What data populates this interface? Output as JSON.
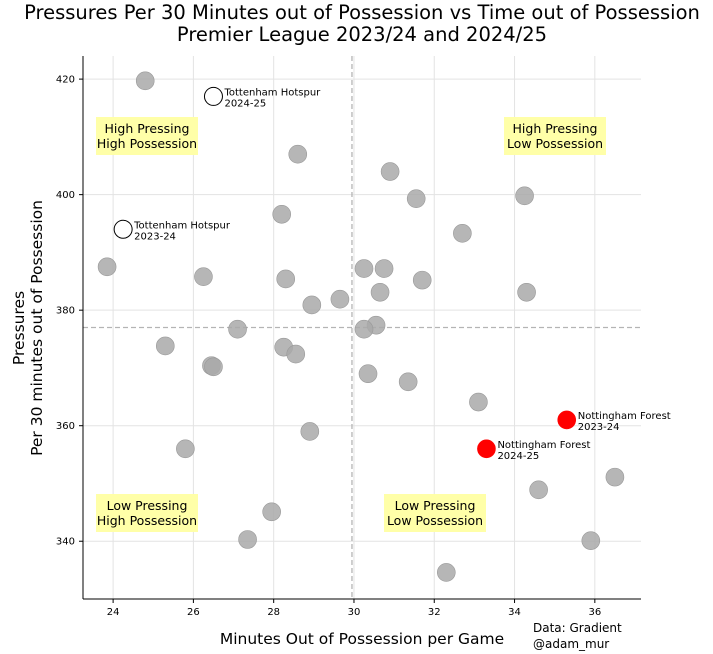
{
  "chart_data": {
    "type": "scatter",
    "title_line1": "Pressures Per 30 Minutes out of Possession vs Time out of Possession",
    "title_line2": "Premier League 2023/24 and 2024/25",
    "xlabel": "Minutes Out of Possession per Game",
    "ylabel_line1": "Pressures",
    "ylabel_line2": "Per 30 minutes out of Possession",
    "xlim": [
      23.25,
      37.15
    ],
    "ylim": [
      330,
      424
    ],
    "x_ticks": [
      "24",
      "26",
      "28",
      "30",
      "32",
      "34",
      "36"
    ],
    "y_ticks": [
      "340",
      "360",
      "380",
      "400",
      "420"
    ],
    "x_tick_values": [
      24,
      26,
      28,
      30,
      32,
      34,
      36
    ],
    "y_tick_values": [
      340,
      360,
      380,
      400,
      420
    ],
    "grid": true,
    "x_mean": 29.95,
    "y_mean": 377,
    "source_line1": "Data: Gradient",
    "source_line2": "@adam_mur",
    "quadrants": {
      "top_left": [
        "High Pressing",
        "High Possession"
      ],
      "top_right": [
        "High Pressing",
        "Low Possession"
      ],
      "bottom_left": [
        "Low Pressing",
        "High Possession"
      ],
      "bottom_right": [
        "Low Pressing",
        "Low Possession"
      ]
    },
    "colors": {
      "other": "#a9a9a9",
      "forest": "#ff0000",
      "spurs": "#ffffff",
      "quadrant_box": "#ffffa8",
      "mean_line": "#b4b4b4",
      "grid": "#e3e3e3"
    },
    "highlighted": [
      {
        "team": "Tottenham Hotspur",
        "season": "2024-25",
        "x": 26.5,
        "y": 417,
        "style": "spurs"
      },
      {
        "team": "Tottenham Hotspur",
        "season": "2023-24",
        "x": 24.25,
        "y": 394,
        "style": "spurs"
      },
      {
        "team": "Nottingham Forest",
        "season": "2023-24",
        "x": 35.3,
        "y": 361,
        "style": "forest"
      },
      {
        "team": "Nottingham Forest",
        "season": "2024-25",
        "x": 33.3,
        "y": 356,
        "style": "forest"
      }
    ],
    "other_points": [
      {
        "x": 24.8,
        "y": 419.7
      },
      {
        "x": 28.6,
        "y": 407
      },
      {
        "x": 30.9,
        "y": 404
      },
      {
        "x": 31.55,
        "y": 399.3
      },
      {
        "x": 34.25,
        "y": 399.8
      },
      {
        "x": 28.2,
        "y": 396.6
      },
      {
        "x": 32.7,
        "y": 393.3
      },
      {
        "x": 23.85,
        "y": 387.5
      },
      {
        "x": 26.25,
        "y": 385.8
      },
      {
        "x": 28.3,
        "y": 385.4
      },
      {
        "x": 30.25,
        "y": 387.2
      },
      {
        "x": 30.75,
        "y": 387.2
      },
      {
        "x": 31.7,
        "y": 385.2
      },
      {
        "x": 30.65,
        "y": 383.1
      },
      {
        "x": 34.3,
        "y": 383.1
      },
      {
        "x": 28.95,
        "y": 380.9
      },
      {
        "x": 29.65,
        "y": 381.9
      },
      {
        "x": 27.1,
        "y": 376.7
      },
      {
        "x": 30.55,
        "y": 377.4
      },
      {
        "x": 30.25,
        "y": 376.7
      },
      {
        "x": 25.3,
        "y": 373.8
      },
      {
        "x": 28.25,
        "y": 373.6
      },
      {
        "x": 28.55,
        "y": 372.4
      },
      {
        "x": 26.45,
        "y": 370.4
      },
      {
        "x": 26.5,
        "y": 370.2
      },
      {
        "x": 30.35,
        "y": 369
      },
      {
        "x": 31.35,
        "y": 367.6
      },
      {
        "x": 33.1,
        "y": 364.1
      },
      {
        "x": 28.9,
        "y": 359
      },
      {
        "x": 25.8,
        "y": 356
      },
      {
        "x": 36.5,
        "y": 351.1
      },
      {
        "x": 34.6,
        "y": 348.9
      },
      {
        "x": 27.95,
        "y": 345.1
      },
      {
        "x": 27.35,
        "y": 340.3
      },
      {
        "x": 35.9,
        "y": 340.1
      },
      {
        "x": 32.3,
        "y": 334.6
      }
    ]
  }
}
